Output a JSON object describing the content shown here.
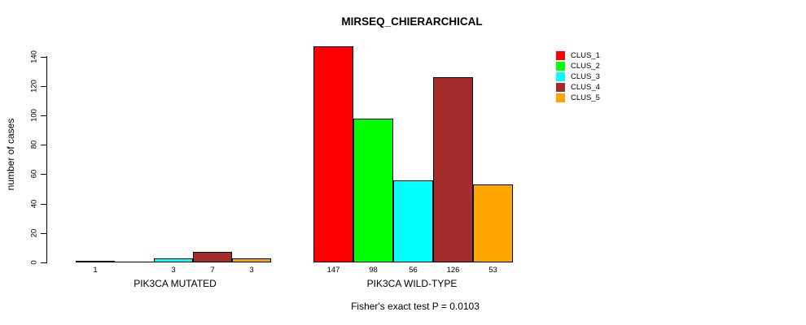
{
  "page": {
    "background": "#ffffff"
  },
  "chart_data": {
    "type": "bar",
    "title": "MIRSEQ_CHIERARCHICAL",
    "xlabel": "",
    "ylabel": "number of cases",
    "ylim": [
      0,
      150
    ],
    "yticks": [
      0,
      20,
      40,
      60,
      80,
      100,
      120,
      140
    ],
    "grid": false,
    "legend_position": "top-right",
    "categories": [
      "PIK3CA MUTATED",
      "PIK3CA WILD-TYPE"
    ],
    "series": [
      {
        "name": "CLUS_1",
        "color": "#FF0000",
        "values": [
          1,
          147
        ]
      },
      {
        "name": "CLUS_2",
        "color": "#00FF00",
        "values": [
          0,
          98
        ]
      },
      {
        "name": "CLUS_3",
        "color": "#00FFFF",
        "values": [
          3,
          56
        ]
      },
      {
        "name": "CLUS_4",
        "color": "#A52A2A",
        "values": [
          7,
          126
        ]
      },
      {
        "name": "CLUS_5",
        "color": "#FFA500",
        "values": [
          3,
          53
        ]
      }
    ],
    "bar_labels": [
      [
        "1",
        "",
        "3",
        "7",
        "3"
      ],
      [
        "147",
        "98",
        "56",
        "126",
        "53"
      ]
    ],
    "annotation": "Fisher's exact test P = 0.0103"
  }
}
